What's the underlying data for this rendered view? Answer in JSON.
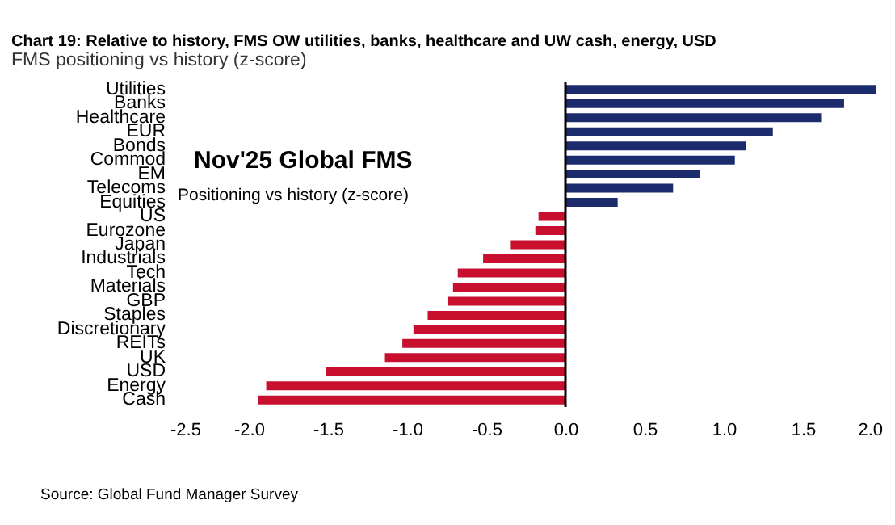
{
  "chart_data": {
    "type": "bar",
    "orientation": "horizontal",
    "title": "Chart 19: Relative to history, FMS OW utilities, banks, healthcare and UW cash, energy, USD",
    "subtitle": "FMS positioning vs history (z-score)",
    "categories": [
      "Utilities",
      "Banks",
      "Healthcare",
      "EUR",
      "Bonds",
      "Commod",
      "EM",
      "Telecoms",
      "Equities",
      "US",
      "Eurozone",
      "Japan",
      "Industrials",
      "Tech",
      "Materials",
      "GBP",
      "Staples",
      "Discretionary",
      "REITs",
      "UK",
      "USD",
      "Energy",
      "Cash"
    ],
    "values": [
      1.96,
      1.76,
      1.62,
      1.31,
      1.14,
      1.07,
      0.85,
      0.68,
      0.33,
      -0.17,
      -0.19,
      -0.35,
      -0.52,
      -0.68,
      -0.71,
      -0.74,
      -0.87,
      -0.96,
      -1.03,
      -1.14,
      -1.51,
      -1.89,
      -1.94
    ],
    "colors": [
      "#1c2b6b",
      "#1c2b6b",
      "#1c2b6b",
      "#1c2b6b",
      "#1c2b6b",
      "#1c2b6b",
      "#1c2b6b",
      "#1c2b6b",
      "#1c2b6b",
      "#c8102e",
      "#c8102e",
      "#c8102e",
      "#c8102e",
      "#c8102e",
      "#c8102e",
      "#c8102e",
      "#c8102e",
      "#c8102e",
      "#c8102e",
      "#c8102e",
      "#c8102e",
      "#c8102e",
      "#c8102e"
    ],
    "xlim": [
      -2.5,
      2.0
    ],
    "xticks": [
      {
        "value": -2.5,
        "label": "-2.5"
      },
      {
        "value": -2,
        "label": "-2.0"
      },
      {
        "value": -1.5,
        "label": "-1.5"
      },
      {
        "value": -1,
        "label": "-1.0"
      },
      {
        "value": -0.5,
        "label": "-0.5"
      },
      {
        "value": 0,
        "label": "0.0"
      },
      {
        "value": 0.5,
        "label": "0.5"
      },
      {
        "value": 1,
        "label": "1.0"
      },
      {
        "value": 1.5,
        "label": "1.5"
      },
      {
        "value": 2,
        "label": "2.0"
      }
    ],
    "ref_lines": [
      {
        "axis": "x",
        "value": 0,
        "color": "#000000"
      }
    ],
    "grid": false,
    "annotations": [
      "Nov'25 Global FMS",
      "Positioning vs history (z-score)",
      "Source: Global Fund Manager Survey"
    ]
  }
}
